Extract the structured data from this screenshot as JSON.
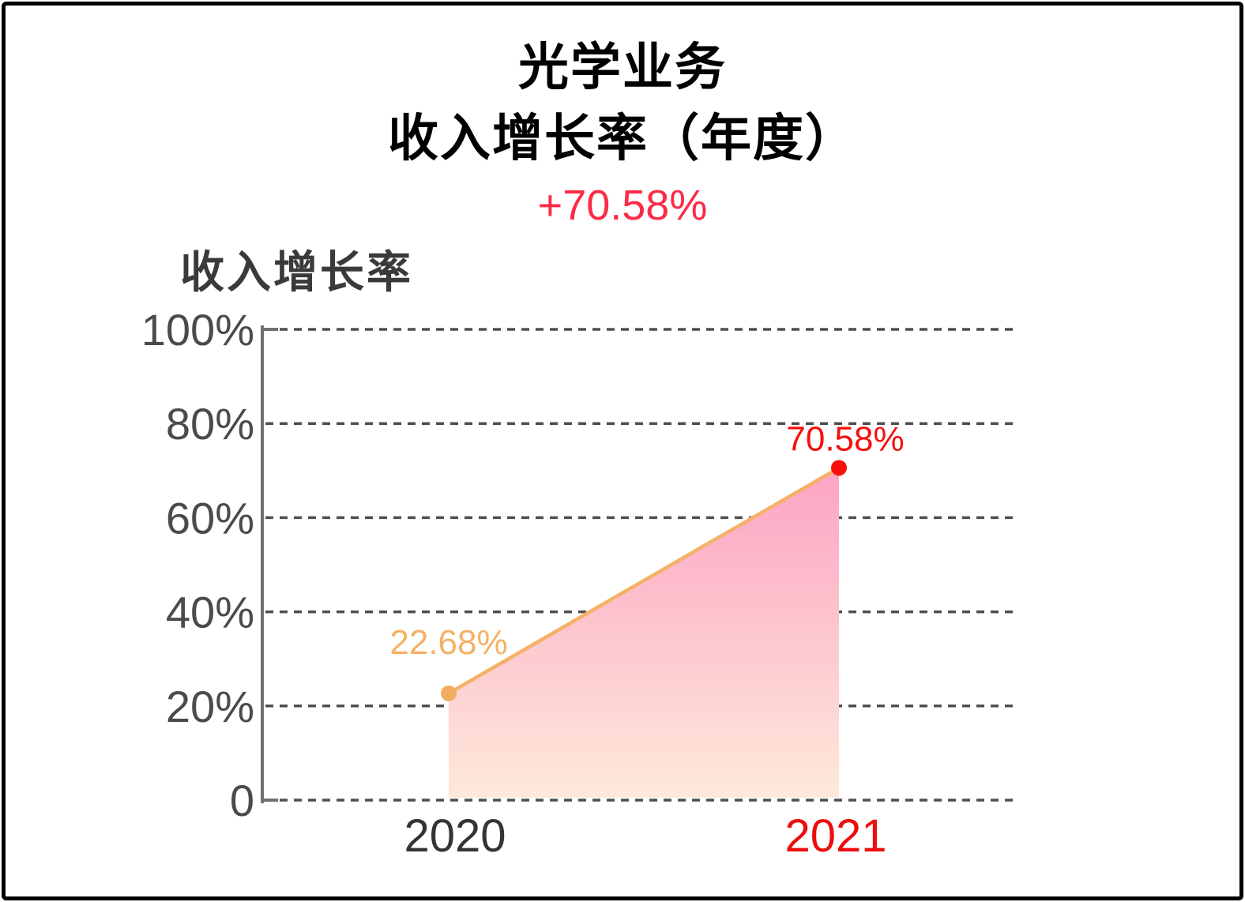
{
  "header": {
    "title_line1": "光学业务",
    "title_line2": "收入增长率（年度）",
    "change_label": "+70.58%"
  },
  "chart_data": {
    "type": "area",
    "series_label": "收入增长率",
    "x": [
      "2020",
      "2021"
    ],
    "values": [
      22.68,
      70.58
    ],
    "point_labels": [
      "22.68%",
      "70.58%"
    ],
    "ylim": [
      0,
      100
    ],
    "yticks": [
      0,
      20,
      40,
      60,
      80,
      100
    ],
    "ytick_labels": [
      "0",
      "20%",
      "40%",
      "60%",
      "80%",
      "100%"
    ],
    "grid": "horizontal-dashed",
    "legend_position": "top-left",
    "colors": {
      "title": "#000000",
      "change": "#FB2B46",
      "legend": "#3A3A3C",
      "line": "#F5B166",
      "point_2020": "#F0AD62",
      "label_2020": "#F5B166",
      "point_2021": "#F5100C",
      "label_2021": "#F5100C",
      "xlabel_2020": "#333338",
      "xlabel_2021": "#EC0E0E",
      "area_top": "#FCA4C4",
      "area_bottom": "#FEE9DA",
      "grid": "#4F4F4F",
      "axis": "#707070",
      "ytick": "#4B4B4E"
    }
  }
}
